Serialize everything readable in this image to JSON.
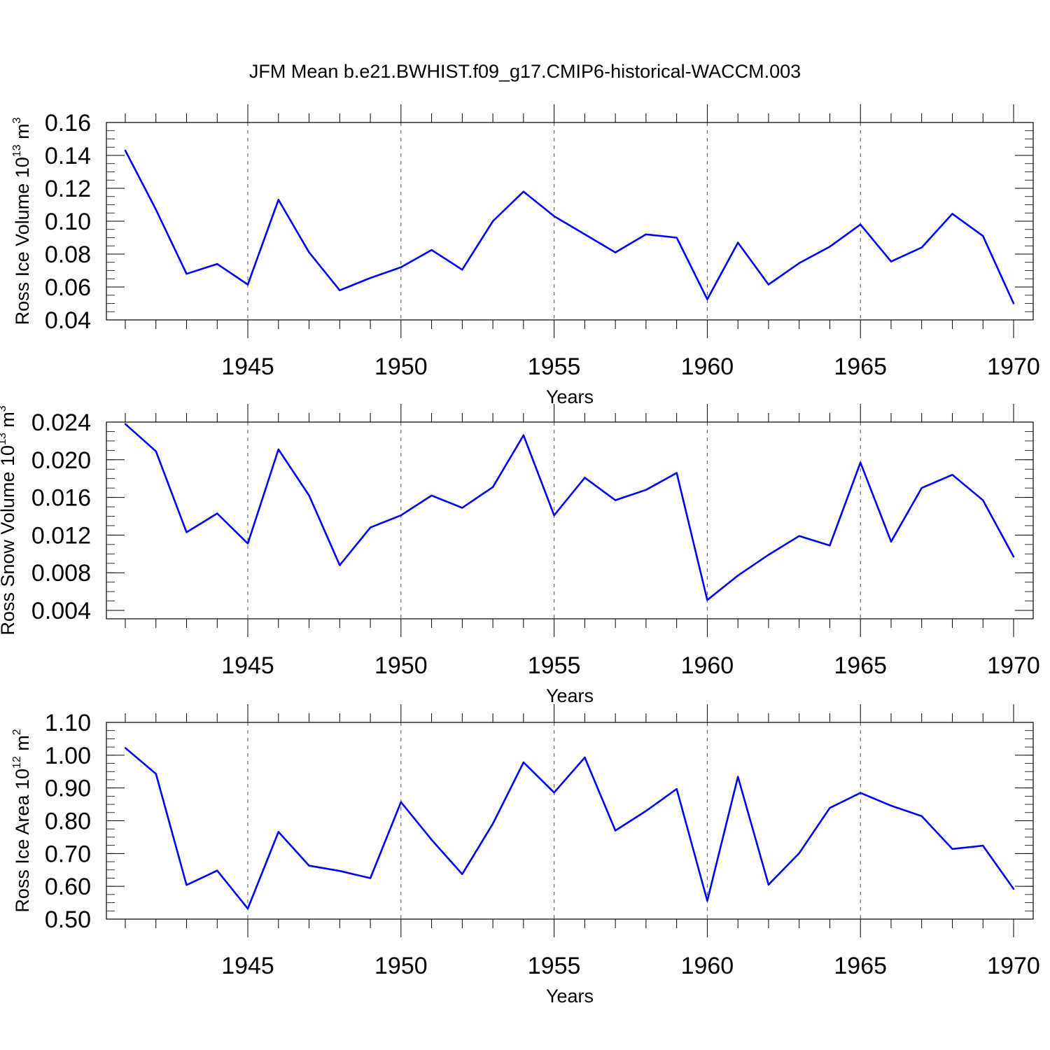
{
  "chart_data": [
    {
      "type": "line",
      "title": "JFM Mean b.e21.BWHIST.f09_g17.CMIP6-historical-WACCM.003",
      "xlabel": "Years",
      "ylabel": "Ross Ice Volume 10",
      "ylabel_exp": "13",
      "ylabel_unit": " m",
      "ylabel_unit_exp": "3",
      "xlim": [
        1941,
        1970
      ],
      "ylim": [
        0.04,
        0.16
      ],
      "yticks": [
        0.04,
        0.06,
        0.08,
        0.1,
        0.12,
        0.14,
        0.16
      ],
      "ytick_labels": [
        "0.04",
        "0.06",
        "0.08",
        "0.10",
        "0.12",
        "0.14",
        "0.16"
      ],
      "xticks": [
        1945,
        1950,
        1955,
        1960,
        1965,
        1970
      ],
      "xtick_labels": [
        "1945",
        "1950",
        "1955",
        "1960",
        "1965",
        "1970"
      ],
      "grid": "vertical dashed at major x ticks",
      "color": "#0000ff",
      "x": [
        1941,
        1942,
        1943,
        1944,
        1945,
        1946,
        1947,
        1948,
        1949,
        1950,
        1951,
        1952,
        1953,
        1954,
        1955,
        1956,
        1957,
        1958,
        1959,
        1960,
        1961,
        1962,
        1963,
        1964,
        1965,
        1966,
        1967,
        1968,
        1969,
        1970
      ],
      "values": [
        0.143,
        0.107,
        0.068,
        0.074,
        0.0615,
        0.113,
        0.081,
        0.058,
        0.0655,
        0.072,
        0.0825,
        0.0705,
        0.1,
        0.118,
        0.103,
        0.092,
        0.081,
        0.092,
        0.09,
        0.0525,
        0.087,
        0.0615,
        0.0745,
        0.0845,
        0.098,
        0.0755,
        0.084,
        0.1045,
        0.091,
        0.05
      ]
    },
    {
      "type": "line",
      "xlabel": "Years",
      "ylabel": "Ross Snow Volume 10",
      "ylabel_exp": "13",
      "ylabel_unit": " m",
      "ylabel_unit_exp": "3",
      "xlim": [
        1941,
        1970
      ],
      "ylim": [
        0.003,
        0.024
      ],
      "yticks": [
        0.004,
        0.008,
        0.012,
        0.016,
        0.02,
        0.024
      ],
      "ytick_labels": [
        "0.004",
        "0.008",
        "0.012",
        "0.016",
        "0.020",
        "0.024"
      ],
      "xticks": [
        1945,
        1950,
        1955,
        1960,
        1965,
        1970
      ],
      "xtick_labels": [
        "1945",
        "1950",
        "1955",
        "1960",
        "1965",
        "1970"
      ],
      "grid": "vertical dashed at major x ticks",
      "color": "#0000ff",
      "x": [
        1941,
        1942,
        1943,
        1944,
        1945,
        1946,
        1947,
        1948,
        1949,
        1950,
        1951,
        1952,
        1953,
        1954,
        1955,
        1956,
        1957,
        1958,
        1959,
        1960,
        1961,
        1962,
        1963,
        1964,
        1965,
        1966,
        1967,
        1968,
        1969,
        1970
      ],
      "values": [
        0.0238,
        0.0209,
        0.0123,
        0.0143,
        0.0111,
        0.0211,
        0.0162,
        0.0088,
        0.0128,
        0.0141,
        0.0162,
        0.0149,
        0.0171,
        0.0226,
        0.0141,
        0.0181,
        0.0157,
        0.0168,
        0.0186,
        0.0051,
        0.0077,
        0.0099,
        0.0119,
        0.0109,
        0.0197,
        0.0113,
        0.017,
        0.0184,
        0.0157,
        0.0097
      ]
    },
    {
      "type": "line",
      "xlabel": "Years",
      "ylabel": "Ross Ice Area 10",
      "ylabel_exp": "12",
      "ylabel_unit": " m",
      "ylabel_unit_exp": "2",
      "xlim": [
        1941,
        1970
      ],
      "ylim": [
        0.5,
        1.1
      ],
      "yticks": [
        0.5,
        0.6,
        0.7,
        0.8,
        0.9,
        1.0,
        1.1
      ],
      "ytick_labels": [
        "0.50",
        "0.60",
        "0.70",
        "0.80",
        "0.90",
        "1.00",
        "1.10"
      ],
      "xticks": [
        1945,
        1950,
        1955,
        1960,
        1965,
        1970
      ],
      "xtick_labels": [
        "1945",
        "1950",
        "1955",
        "1960",
        "1965",
        "1970"
      ],
      "grid": "vertical dashed at major x ticks",
      "color": "#0000ff",
      "x": [
        1941,
        1942,
        1943,
        1944,
        1945,
        1946,
        1947,
        1948,
        1949,
        1950,
        1951,
        1952,
        1953,
        1954,
        1955,
        1956,
        1957,
        1958,
        1959,
        1960,
        1961,
        1962,
        1963,
        1964,
        1965,
        1966,
        1967,
        1968,
        1969,
        1970
      ],
      "values": [
        1.022,
        0.943,
        0.604,
        0.648,
        0.532,
        0.766,
        0.663,
        0.647,
        0.625,
        0.857,
        0.742,
        0.637,
        0.791,
        0.978,
        0.886,
        0.993,
        0.77,
        0.83,
        0.897,
        0.556,
        0.934,
        0.605,
        0.701,
        0.839,
        0.885,
        0.846,
        0.814,
        0.714,
        0.724,
        0.592
      ]
    }
  ]
}
